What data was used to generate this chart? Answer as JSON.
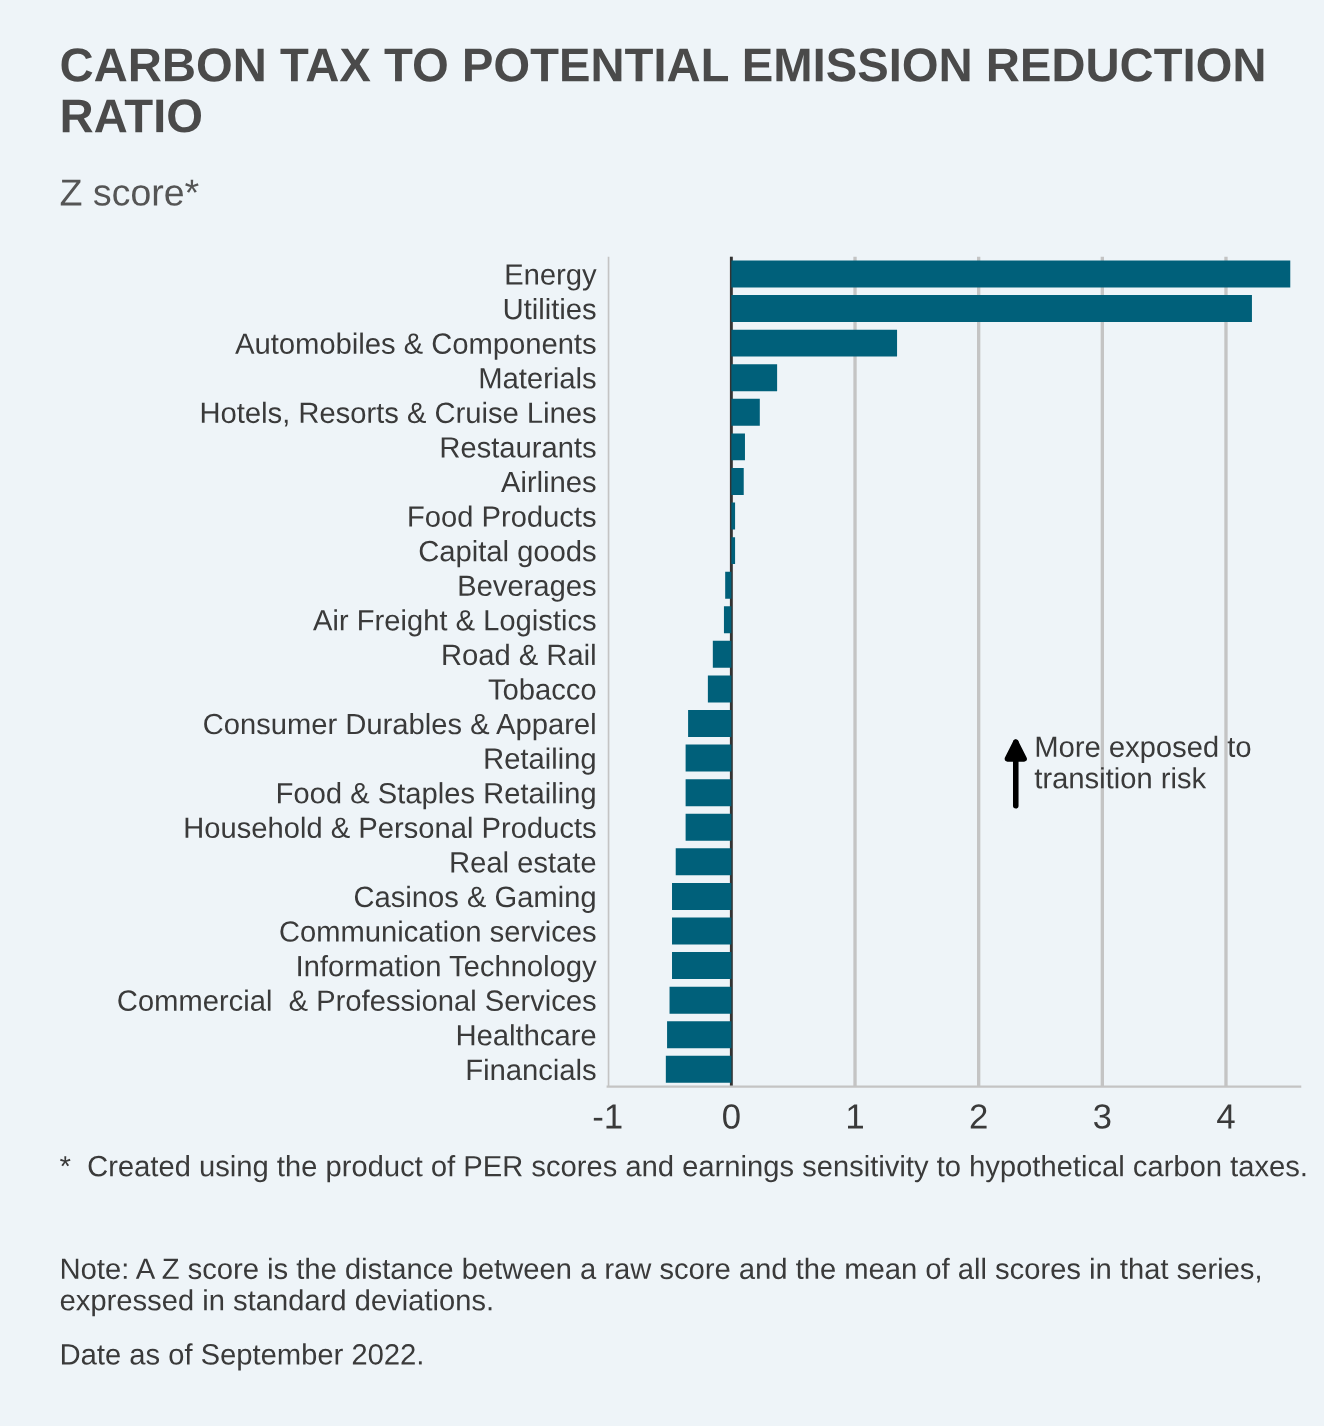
{
  "chart_data": {
    "type": "bar",
    "orientation": "horizontal",
    "title": "CARBON TAX TO POTENTIAL EMISSION REDUCTION RATIO",
    "subtitle": "Z score*",
    "categories": [
      "Energy",
      "Utilities",
      "Automobiles & Components",
      "Materials",
      "Hotels, Resorts & Cruise Lines",
      "Restaurants",
      "Airlines",
      "Food Products",
      "Capital goods",
      "Beverages",
      "Air Freight & Logistics",
      "Road & Rail",
      "Tobacco",
      "Consumer Durables & Apparel",
      "Retailing",
      "Food & Staples Retailing",
      "Household & Personal Products",
      "Real estate",
      "Casinos & Gaming",
      "Communication services",
      "Information Technology",
      "Commercial  & Professional Services",
      "Healthcare",
      "Financials"
    ],
    "values": [
      4.52,
      4.21,
      1.34,
      0.37,
      0.23,
      0.11,
      0.1,
      0.03,
      0.03,
      -0.05,
      -0.06,
      -0.15,
      -0.19,
      -0.35,
      -0.37,
      -0.37,
      -0.37,
      -0.45,
      -0.48,
      -0.48,
      -0.48,
      -0.5,
      -0.52,
      -0.53
    ],
    "color": "#00607a",
    "xlim": [
      -1,
      4.6
    ],
    "xticks": [
      -1,
      0,
      1,
      2,
      3,
      4
    ],
    "grid": "x",
    "ref_lines": [
      {
        "axis": "x",
        "value": 0,
        "color": "#333333"
      }
    ],
    "annotations": [
      "More exposed to transition risk",
      "*  Created using the product of PER scores and earnings sensitivity to hypothetical carbon taxes.",
      "Note: A Z score is the distance between a raw score and the mean of all scores in that series, expressed in standard deviations.",
      "Date as of September 2022."
    ]
  }
}
